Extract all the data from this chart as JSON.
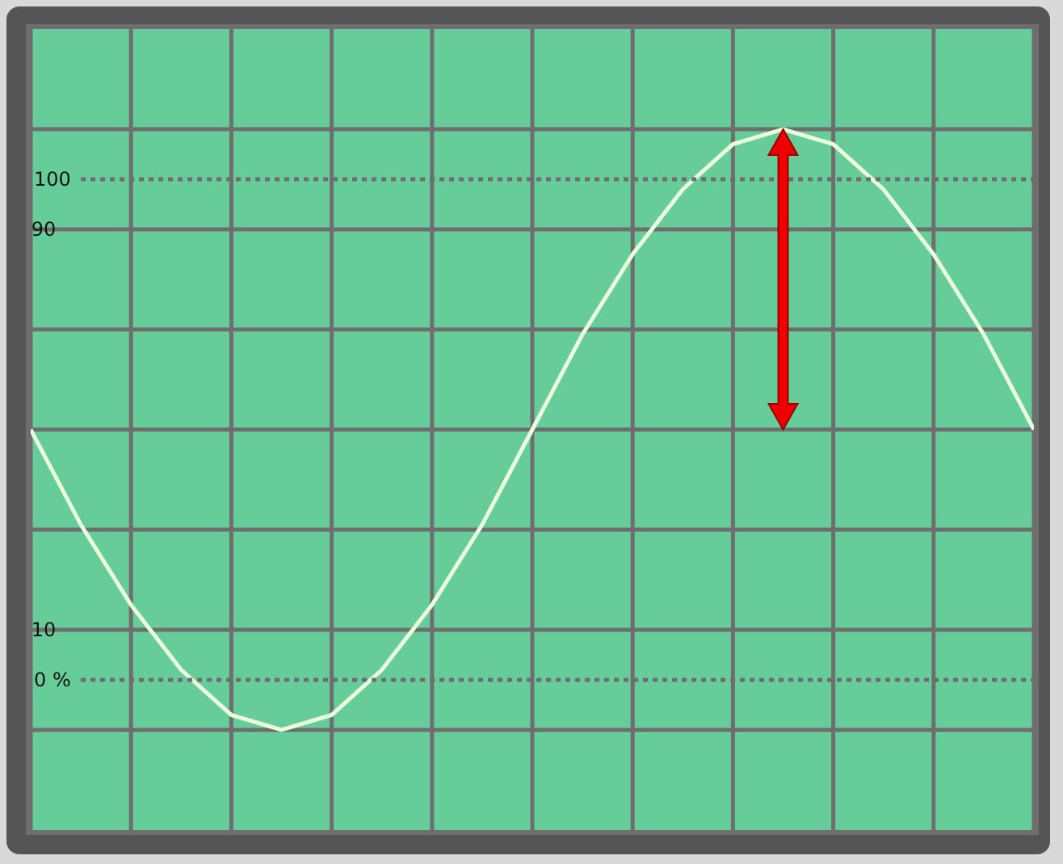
{
  "chart_data": {
    "type": "line",
    "categories": [
      null,
      null,
      null,
      null,
      null,
      null,
      null,
      null,
      null,
      null,
      null,
      null,
      null,
      null,
      null,
      null,
      null,
      null,
      null,
      null,
      null
    ],
    "series": [
      {
        "color": "#eaffdc",
        "values": [
          50,
          31,
          15,
          2,
          -7,
          -10,
          -7,
          2,
          15,
          31,
          50,
          69,
          85,
          98,
          107,
          110,
          107,
          98,
          85,
          69,
          50
        ]
      }
    ],
    "ylim": [
      -30,
      130
    ],
    "yticks": [
      {
        "value": -10,
        "label": null
      },
      10,
      {
        "value": 30,
        "label": null
      },
      {
        "value": 50,
        "label": null
      },
      {
        "value": 70,
        "label": null
      },
      90,
      {
        "value": 110,
        "label": null
      }
    ],
    "tick_labels": "y",
    "grid": true,
    "marker": "none",
    "line_style": "solid",
    "ref_lines": [
      {
        "axis": "y",
        "value": 100,
        "label": "100",
        "line_style": "dotted",
        "color": "#6e6e6e"
      },
      {
        "axis": "y",
        "value": 0,
        "label": "0 %",
        "line_style": "dotted",
        "color": "#6e6e6e"
      }
    ]
  }
}
